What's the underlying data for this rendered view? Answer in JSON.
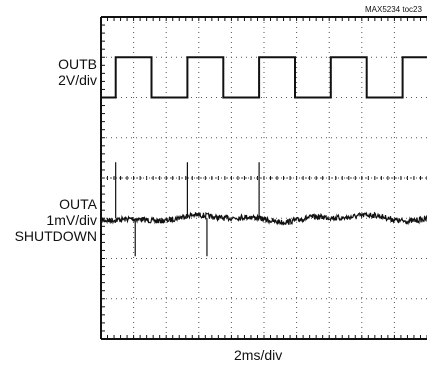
{
  "figure_id": "MAX5234 toc23",
  "chart_data": {
    "type": "line",
    "title": "",
    "xlabel": "2ms/div",
    "grid": true,
    "time_per_div_ms": 2,
    "divisions": {
      "x": 10,
      "y": 8
    },
    "channels": [
      {
        "name": "OUTB",
        "scale": "2V/div",
        "kind": "square-wave",
        "period_ms": 4.4,
        "duty_cycle": 0.5,
        "low_level_div": 0,
        "high_level_div": 1,
        "baseline_div_from_top": 2,
        "first_rise_ms": 0.9
      },
      {
        "name": "OUTA",
        "scale": "1mV/div",
        "mode": "SHUTDOWN",
        "kind": "noise-with-glitches",
        "baseline_div_from_top": 5,
        "glitch_times_ms": [
          0.9,
          2.1,
          5.3,
          6.5,
          9.7
        ],
        "glitch_directions": [
          "up",
          "down",
          "up",
          "down",
          "up"
        ]
      }
    ],
    "labels": {
      "outb_name": "OUTB",
      "outb_scale": "2V/div",
      "outa_name": "OUTA",
      "outa_scale": "1mV/div",
      "outa_mode": "SHUTDOWN"
    }
  }
}
